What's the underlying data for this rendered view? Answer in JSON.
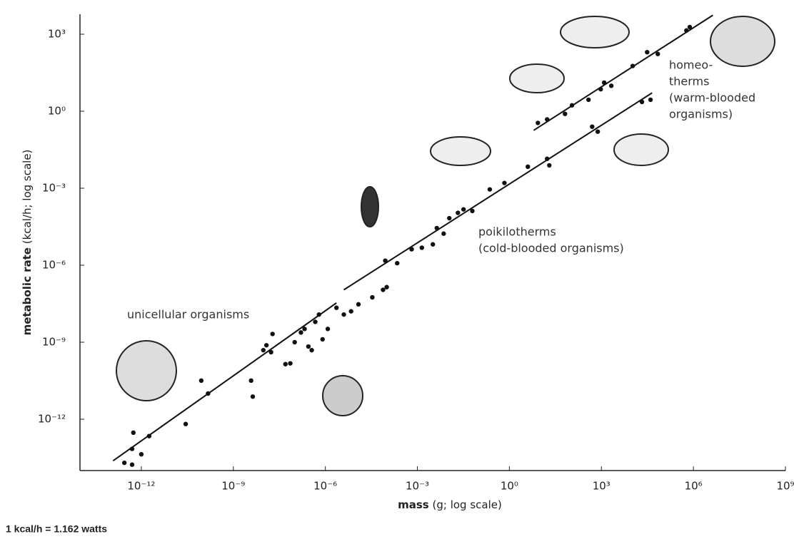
{
  "chart_data": {
    "type": "scatter",
    "xscale": "log",
    "yscale": "log",
    "xlabel": {
      "bold": "mass",
      "rest": "(g; log scale)"
    },
    "ylabel": {
      "bold": "metabolic rate",
      "rest": "(kcal/h; log scale)"
    },
    "xlim": [
      1e-14,
      1000000000.0
    ],
    "ylim": [
      1e-14,
      6000
    ],
    "xticks": [
      {
        "value": 1e-12,
        "label": "10⁻¹²"
      },
      {
        "value": 1e-09,
        "label": "10⁻⁹"
      },
      {
        "value": 1e-06,
        "label": "10⁻⁶"
      },
      {
        "value": 0.001,
        "label": "10⁻³"
      },
      {
        "value": 1,
        "label": "10⁰"
      },
      {
        "value": 1000,
        "label": "10³"
      },
      {
        "value": 1000000,
        "label": "10⁶"
      },
      {
        "value": 1000000000,
        "label": "10⁹"
      }
    ],
    "yticks": [
      {
        "value": 1e-12,
        "label": "10⁻¹²"
      },
      {
        "value": 1e-09,
        "label": "10⁻⁹"
      },
      {
        "value": 1e-06,
        "label": "10⁻⁶"
      },
      {
        "value": 0.001,
        "label": "10⁻³"
      },
      {
        "value": 1,
        "label": "10⁰"
      },
      {
        "value": 1000,
        "label": "10³"
      }
    ],
    "grid": false,
    "series": [
      {
        "mode": "markers",
        "color": "#111111",
        "x": [
          2.8e-13,
          5e-13,
          5e-13,
          5.5e-13,
          1e-12,
          1.8e-12,
          2.8e-11,
          9e-11,
          1.5e-10,
          3.8e-09,
          4.3e-09,
          9.5e-09,
          1.2e-08,
          1.9e-08,
          1.7e-08,
          5e-08,
          7.2e-08,
          1e-07,
          1.6e-07,
          2.1e-07,
          2.8e-07,
          4.7e-07,
          6.2e-07,
          3.6e-07,
          8.1e-07,
          1.2e-06,
          2.3e-06,
          4e-06,
          6.9e-06,
          1.2e-05,
          3.4e-05,
          7.6e-05,
          0.0001
        ],
        "y": [
          2e-14,
          1.7e-14,
          7e-14,
          3e-13,
          4.3e-14,
          2.2e-13,
          6.5e-13,
          3.2e-11,
          1e-11,
          3.2e-11,
          7.6e-12,
          4.9e-10,
          7.6e-10,
          2.1e-09,
          4.1e-10,
          1.4e-10,
          1.5e-10,
          1e-09,
          2.4e-09,
          3.3e-09,
          6.8e-10,
          6.2e-09,
          1.2e-08,
          4.9e-10,
          1.3e-09,
          3.3e-09,
          2.2e-08,
          1.2e-08,
          1.6e-08,
          3e-08,
          5.6e-08,
          1.1e-07,
          1.4e-07
        ]
      },
      {
        "mode": "markers",
        "color": "#111111",
        "x": [
          9e-05,
          0.00022,
          0.00065,
          0.0014,
          0.0032,
          0.0043,
          0.0072,
          0.011,
          0.021,
          0.032,
          0.062,
          0.23,
          0.69,
          4,
          17,
          20,
          500,
          760,
          21000,
          40000
        ],
        "y": [
          1.5e-06,
          1.2e-06,
          4.2e-06,
          4.8e-06,
          6.5e-06,
          2.8e-05,
          1.7e-05,
          6.8e-05,
          0.00011,
          0.00015,
          0.00013,
          0.0009,
          0.0016,
          0.0069,
          0.014,
          0.0078,
          0.25,
          0.16,
          2.3,
          2.8
        ]
      },
      {
        "mode": "markers",
        "color": "#111111",
        "x": [
          8.5,
          17,
          65,
          110,
          380,
          950,
          1230,
          2100,
          10500,
          31000,
          69000,
          590000,
          760000
        ],
        "y": [
          0.35,
          0.48,
          0.79,
          1.7,
          2.8,
          7.2,
          13,
          9.8,
          58,
          200,
          170,
          1400,
          1900
        ]
      },
      {
        "mode": "line",
        "color": "#111111",
        "x": [
          1.2e-13,
          2.3e-06
        ],
        "y": [
          2.4e-14,
          3.4e-08
        ]
      },
      {
        "mode": "line",
        "color": "#111111",
        "x": [
          4e-06,
          45000
        ],
        "y": [
          1.1e-07,
          5.2
        ]
      },
      {
        "mode": "line",
        "color": "#111111",
        "x": [
          6.2,
          4300000
        ],
        "y": [
          0.18,
          5500
        ]
      }
    ],
    "annotations": [
      {
        "lines": [
          "unicellular organisms"
        ]
      },
      {
        "lines": [
          "poikilotherms",
          "(cold-blooded organisms)"
        ]
      },
      {
        "lines": [
          "homeo-",
          "therms",
          "(warm-blooded",
          "organisms)"
        ]
      }
    ]
  },
  "footnote": "1 kcal/h = 1.162 watts"
}
